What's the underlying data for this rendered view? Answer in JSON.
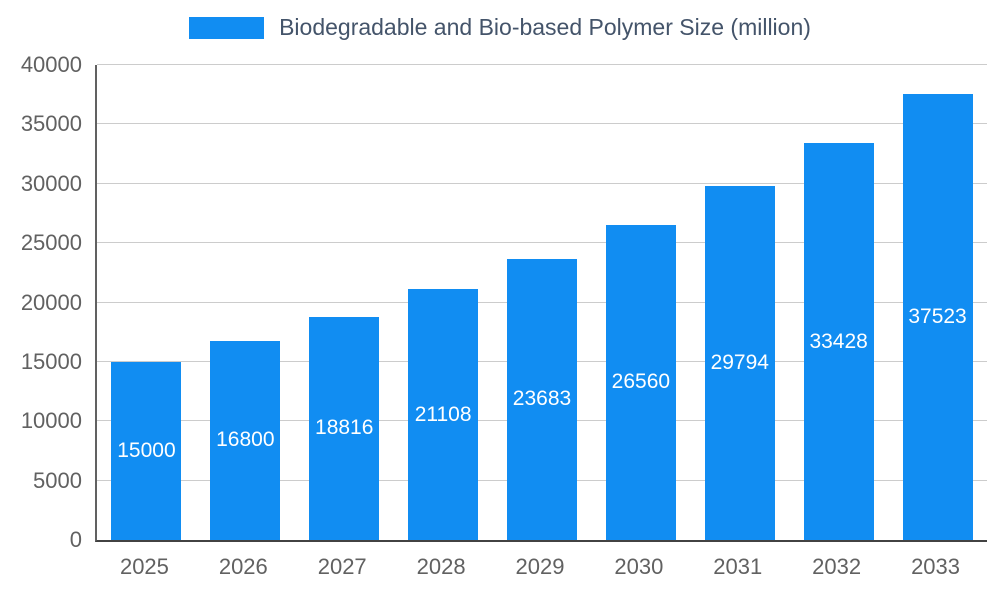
{
  "chart_data": {
    "type": "bar",
    "title": "Biodegradable and Bio-based Polymer Size (million)",
    "categories": [
      "2025",
      "2026",
      "2027",
      "2028",
      "2029",
      "2030",
      "2031",
      "2032",
      "2033"
    ],
    "values": [
      15000,
      16800,
      18816,
      21108,
      23683,
      26560,
      29794,
      33428,
      37523
    ],
    "xlabel": "",
    "ylabel": "",
    "ylim": [
      0,
      40000
    ],
    "y_tick_step": 5000,
    "y_tick_labels": [
      "0",
      "5000",
      "10000",
      "15000",
      "20000",
      "25000",
      "30000",
      "35000",
      "40000"
    ],
    "grid": true,
    "legend_position": "top",
    "colors": {
      "bar": "#118df2",
      "bar_label_text": "#ffffff",
      "legend_text": "#44546a",
      "axis_tick_text": "#616161",
      "grid_line": "#cccccc"
    }
  }
}
